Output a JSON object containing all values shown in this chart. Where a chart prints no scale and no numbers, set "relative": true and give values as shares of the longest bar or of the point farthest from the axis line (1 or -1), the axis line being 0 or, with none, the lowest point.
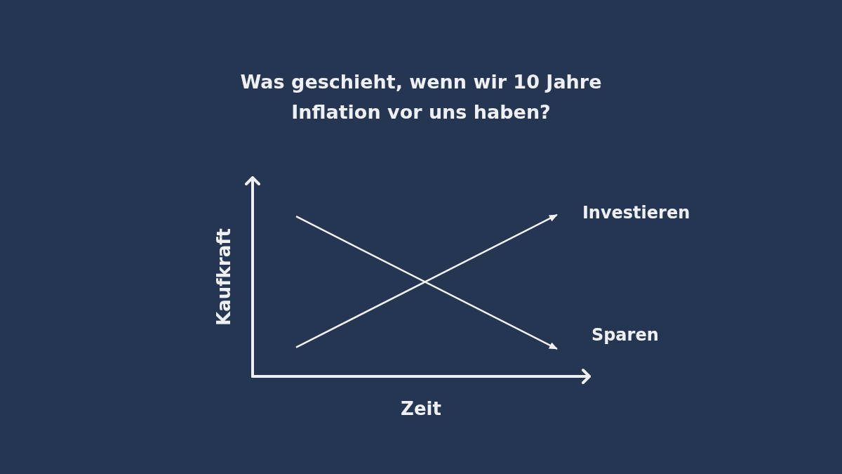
{
  "chart_data": {
    "type": "line",
    "title": "Was geschieht, wenn wir 10 Jahre Inflation vor uns haben?",
    "xlabel": "Zeit",
    "ylabel": "Kaufkraft",
    "categories": [
      null,
      null
    ],
    "relative": true,
    "legend": "right",
    "series": [
      {
        "name": "Investieren",
        "color": "#f2f2f2",
        "values": [
          0.18,
          1
        ]
      },
      {
        "name": "Sparen",
        "color": "#f2f2f2",
        "values": [
          0.99,
          0.17
        ]
      }
    ]
  }
}
